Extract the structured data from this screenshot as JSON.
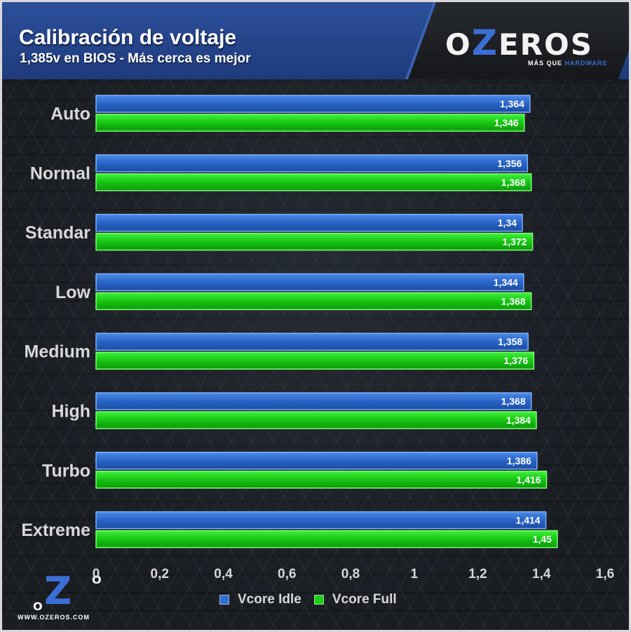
{
  "header": {
    "title": "Calibración de voltaje",
    "subtitle": "1,385v en BIOS - Más cerca es mejor"
  },
  "brand": {
    "logo_text_left": "O",
    "logo_text_z": "Z",
    "logo_text_right": "EROS",
    "tagline_prefix": "MÁS QUE ",
    "tagline_suffix": "HARDWARE",
    "footer_url": "WWW.OZEROS.COM",
    "footer_o": "O",
    "footer_z": "Z"
  },
  "colors": {
    "idle": "#2f6fcf",
    "full": "#1fcf1a",
    "axis_text": "#d8d8d8",
    "accent": "#3c6fd6"
  },
  "chart_data": {
    "type": "bar",
    "orientation": "horizontal",
    "title": "Calibración de voltaje",
    "subtitle": "1,385v en BIOS - Más cerca es mejor",
    "categories": [
      "Auto",
      "Normal",
      "Standar",
      "Low",
      "Medium",
      "High",
      "Turbo",
      "Extreme"
    ],
    "series": [
      {
        "name": "Vcore Idle",
        "values": [
          1.364,
          1.356,
          1.34,
          1.344,
          1.358,
          1.368,
          1.386,
          1.414
        ],
        "labels": [
          "1,364",
          "1,356",
          "1,34",
          "1,344",
          "1,358",
          "1,368",
          "1,386",
          "1,414"
        ]
      },
      {
        "name": "Vcore Full",
        "values": [
          1.346,
          1.368,
          1.372,
          1.368,
          1.376,
          1.384,
          1.416,
          1.45
        ],
        "labels": [
          "1,346",
          "1,368",
          "1,372",
          "1,368",
          "1,376",
          "1,384",
          "1,416",
          "1,45"
        ]
      }
    ],
    "xlim": [
      0,
      1.6
    ],
    "xticks": [
      "0",
      "0,2",
      "0,4",
      "0,6",
      "0,8",
      "1",
      "1,2",
      "1,4",
      "1,6"
    ],
    "grid": false,
    "legend_position": "bottom"
  }
}
